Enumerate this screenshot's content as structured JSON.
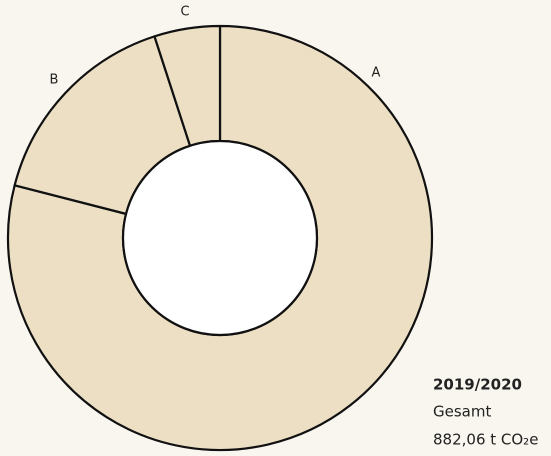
{
  "chart_data": {
    "type": "donut",
    "categories": [
      "A",
      "B",
      "C"
    ],
    "values": [
      79,
      16,
      5
    ],
    "color": "#ecdfc4",
    "info": {
      "period": "2019/2020",
      "label": "Gesamt",
      "total": "882,06 t CO₂e"
    }
  }
}
